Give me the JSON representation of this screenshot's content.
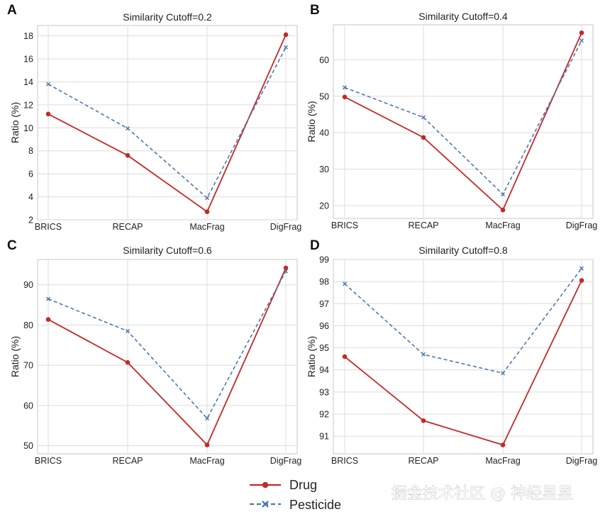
{
  "legend": {
    "items": [
      {
        "label": "Drug",
        "color": "#c62828",
        "style": "solid",
        "marker": "circle"
      },
      {
        "label": "Pesticide",
        "color": "#4a78b0",
        "style": "dashed",
        "marker": "x"
      }
    ]
  },
  "watermark": "掘金技术社区 @ 神经星星",
  "chart_data": [
    {
      "panel": "A",
      "type": "line",
      "title": "Similarity Cutoff=0.2",
      "xlabel": "",
      "ylabel": "Ratio (%)",
      "categories": [
        "BRICS",
        "RECAP",
        "MacFrag",
        "DigFrag"
      ],
      "ylim": [
        2,
        18.9
      ],
      "yticks": [
        2,
        4,
        6,
        8,
        10,
        12,
        14,
        16,
        18
      ],
      "grid": true,
      "series": [
        {
          "name": "Drug",
          "values": [
            11.2,
            7.6,
            2.7,
            18.1
          ]
        },
        {
          "name": "Pesticide",
          "values": [
            13.8,
            9.95,
            3.9,
            17.0
          ]
        }
      ]
    },
    {
      "panel": "B",
      "type": "line",
      "title": "Similarity Cutoff=0.4",
      "xlabel": "",
      "ylabel": "Ratio (%)",
      "categories": [
        "BRICS",
        "RECAP",
        "MacFrag",
        "DigFrag"
      ],
      "ylim": [
        16.5,
        69.6
      ],
      "yticks": [
        20,
        30,
        40,
        50,
        60
      ],
      "grid": true,
      "series": [
        {
          "name": "Drug",
          "values": [
            49.8,
            38.7,
            18.8,
            67.4
          ]
        },
        {
          "name": "Pesticide",
          "values": [
            52.4,
            44.2,
            23.1,
            65.3
          ]
        }
      ]
    },
    {
      "panel": "C",
      "type": "line",
      "title": "Similarity Cutoff=0.6",
      "xlabel": "",
      "ylabel": "Ratio (%)",
      "categories": [
        "BRICS",
        "RECAP",
        "MacFrag",
        "DigFrag"
      ],
      "ylim": [
        48.0,
        96.3
      ],
      "yticks": [
        50,
        60,
        70,
        80,
        90
      ],
      "grid": true,
      "series": [
        {
          "name": "Drug",
          "values": [
            81.4,
            70.7,
            50.2,
            94.2
          ]
        },
        {
          "name": "Pesticide",
          "values": [
            86.5,
            78.5,
            56.8,
            93.4
          ]
        }
      ]
    },
    {
      "panel": "D",
      "type": "line",
      "title": "Similarity Cutoff=0.8",
      "xlabel": "",
      "ylabel": "Ratio (%)",
      "categories": [
        "BRICS",
        "RECAP",
        "MacFrag",
        "DigFrag"
      ],
      "ylim": [
        90.2,
        99.0
      ],
      "yticks": [
        91,
        92,
        93,
        94,
        95,
        96,
        97,
        98,
        99
      ],
      "grid": true,
      "series": [
        {
          "name": "Drug",
          "values": [
            94.6,
            91.7,
            90.6,
            98.05
          ]
        },
        {
          "name": "Pesticide",
          "values": [
            97.9,
            94.7,
            93.85,
            98.6
          ]
        }
      ]
    }
  ]
}
